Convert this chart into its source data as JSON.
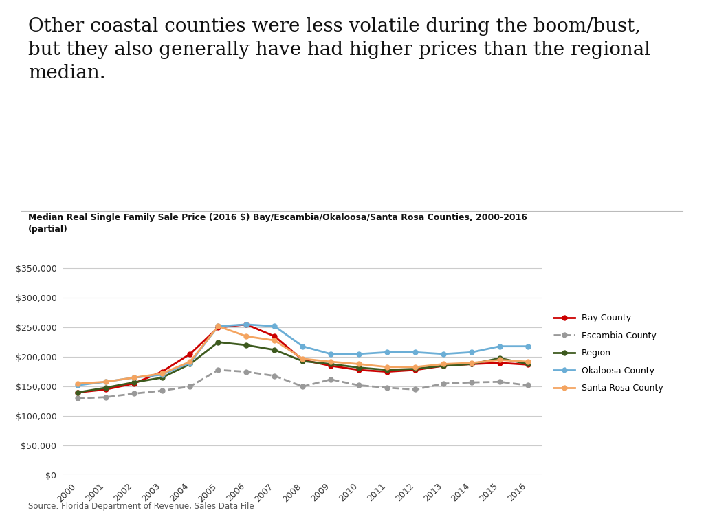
{
  "title": "Other coastal counties were less volatile during the boom/bust,\nbut they also generally have had higher prices than the regional\nmedian.",
  "subtitle": "Median Real Single Family Sale Price (2016 $) Bay/Escambia/Okaloosa/Santa Rosa Counties, 2000-2016\n(partial)",
  "source": "Source: Florida Department of Revenue, Sales Data File",
  "years": [
    2000,
    2001,
    2002,
    2003,
    2004,
    2005,
    2006,
    2007,
    2008,
    2009,
    2010,
    2011,
    2012,
    2013,
    2014,
    2015,
    2016
  ],
  "Bay County": [
    140000,
    145000,
    155000,
    175000,
    205000,
    250000,
    255000,
    235000,
    195000,
    185000,
    178000,
    175000,
    178000,
    185000,
    188000,
    190000,
    187000
  ],
  "Escambia County": [
    130000,
    132000,
    138000,
    143000,
    150000,
    178000,
    175000,
    168000,
    150000,
    162000,
    152000,
    148000,
    145000,
    155000,
    157000,
    158000,
    152000
  ],
  "Region": [
    140000,
    148000,
    157000,
    165000,
    188000,
    225000,
    220000,
    212000,
    193000,
    188000,
    182000,
    178000,
    180000,
    185000,
    188000,
    198000,
    188000
  ],
  "Okaloosa County": [
    152000,
    158000,
    165000,
    170000,
    190000,
    252000,
    255000,
    252000,
    218000,
    205000,
    205000,
    208000,
    208000,
    205000,
    208000,
    218000,
    218000
  ],
  "Santa Rosa County": [
    155000,
    158000,
    165000,
    172000,
    192000,
    252000,
    235000,
    228000,
    197000,
    192000,
    188000,
    183000,
    183000,
    188000,
    190000,
    195000,
    192000
  ],
  "colors": {
    "Bay County": "#cc0000",
    "Escambia County": "#999999",
    "Region": "#3d5a1e",
    "Okaloosa County": "#6baed6",
    "Santa Rosa County": "#f4a460"
  },
  "ylim": [
    0,
    375000
  ],
  "yticks": [
    0,
    50000,
    100000,
    150000,
    200000,
    250000,
    300000,
    350000
  ],
  "background_color": "#ffffff",
  "grid_color": "#cccccc",
  "legend_entries": [
    [
      "Bay County",
      "#cc0000",
      "-"
    ],
    [
      "Escambia County",
      "#999999",
      "--"
    ],
    [
      "Region",
      "#3d5a1e",
      "-"
    ],
    [
      "Okaloosa County",
      "#6baed6",
      "-"
    ],
    [
      "Santa Rosa County",
      "#f4a460",
      "-"
    ]
  ]
}
